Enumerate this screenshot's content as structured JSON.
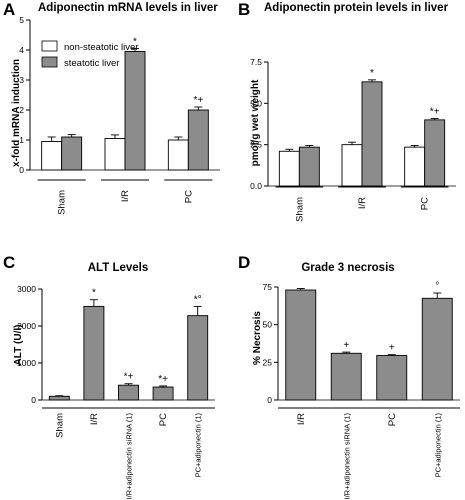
{
  "chart_data": [
    {
      "panel": "A",
      "type": "bar",
      "title": "Adiponectin mRNA levels in liver",
      "ylabel": "x-fold mRNA induction",
      "ylim": [
        0,
        5
      ],
      "yticks": [
        0,
        1,
        2,
        3,
        4,
        5
      ],
      "categories": [
        "Sham",
        "I/R",
        "PC"
      ],
      "series": [
        {
          "name": "non-steatotic liver",
          "color": "#ffffff",
          "values": [
            0.95,
            1.05,
            1.0
          ],
          "errors": [
            0.15,
            0.12,
            0.1
          ]
        },
        {
          "name": "steatotic liver",
          "color": "#8c8c8c",
          "values": [
            1.1,
            3.95,
            2.0
          ],
          "errors": [
            0.08,
            0.1,
            0.1
          ]
        }
      ],
      "annotations": [
        "",
        "*",
        "*+"
      ],
      "legend_placement": "top-left"
    },
    {
      "panel": "B",
      "type": "bar",
      "title": "Adiponectin protein levels in liver",
      "ylabel": "pmol/g wet weight",
      "ylim": [
        0,
        7.5
      ],
      "yticks": [
        "0.0",
        "2.5",
        "5.0",
        "7.5"
      ],
      "categories": [
        "Sham",
        "I/R",
        "PC"
      ],
      "series": [
        {
          "color": "#ffffff",
          "values": [
            2.1,
            2.5,
            2.35
          ],
          "errors": [
            0.12,
            0.15,
            0.1
          ]
        },
        {
          "color": "#8c8c8c",
          "values": [
            2.35,
            6.3,
            4.0
          ],
          "errors": [
            0.1,
            0.12,
            0.08
          ]
        }
      ],
      "annotations": [
        "",
        "*",
        "*+"
      ]
    },
    {
      "panel": "C",
      "type": "bar",
      "title": "ALT Levels",
      "ylabel": "ALT (U/l)",
      "ylim": [
        0,
        3000
      ],
      "yticks": [
        0,
        1000,
        2000,
        3000
      ],
      "categories": [
        "Sham",
        "I/R",
        "I/R+adiponectin siRNA (1)",
        "PC",
        "PC+adiponectin (1)"
      ],
      "values": [
        100,
        2530,
        400,
        350,
        2280
      ],
      "errors": [
        15,
        180,
        40,
        30,
        250
      ],
      "annotations": [
        "",
        "*",
        "*+",
        "*+",
        "*°"
      ]
    },
    {
      "panel": "D",
      "type": "bar",
      "title": "Grade 3 necrosis",
      "ylabel": "% Necrosis",
      "ylim": [
        0,
        75
      ],
      "yticks": [
        0,
        25,
        50,
        75
      ],
      "categories": [
        "I/R",
        "I/R+adiponectin siRNA (1)",
        "PC",
        "PC+adiponectin (1)"
      ],
      "values": [
        73,
        31,
        29.5,
        67.5
      ],
      "errors": [
        1,
        0.8,
        0.6,
        3.5
      ],
      "annotations": [
        "",
        "+",
        "+",
        "°"
      ]
    }
  ]
}
